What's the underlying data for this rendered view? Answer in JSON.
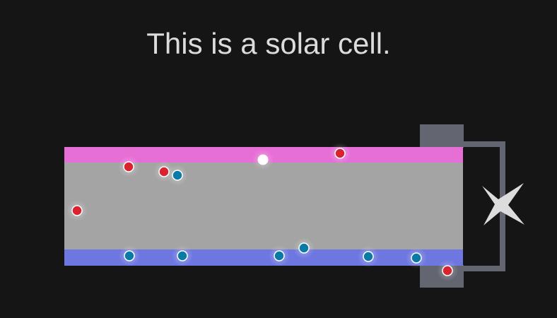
{
  "title": "This is a solar cell.",
  "colors": {
    "background": "#151515",
    "p_layer": "#e66fd6",
    "bulk": "#a4a4a4",
    "n_layer": "#6e77e0",
    "contact": "#636570",
    "wire": "#636570",
    "load": "#dcdcdc",
    "hole": "#d9232e",
    "electron": "#0a7aa6",
    "photon": "#ffffff",
    "title_text": "#dcdcdc"
  },
  "icons": {
    "load": "four-point-star-icon"
  },
  "particles": [
    {
      "kind": "hole"
    },
    {
      "kind": "hole"
    },
    {
      "kind": "electron"
    },
    {
      "kind": "hole"
    },
    {
      "kind": "hole"
    },
    {
      "kind": "photon"
    },
    {
      "kind": "electron"
    },
    {
      "kind": "electron"
    },
    {
      "kind": "electron"
    },
    {
      "kind": "electron"
    },
    {
      "kind": "electron"
    },
    {
      "kind": "electron"
    },
    {
      "kind": "hole"
    }
  ]
}
